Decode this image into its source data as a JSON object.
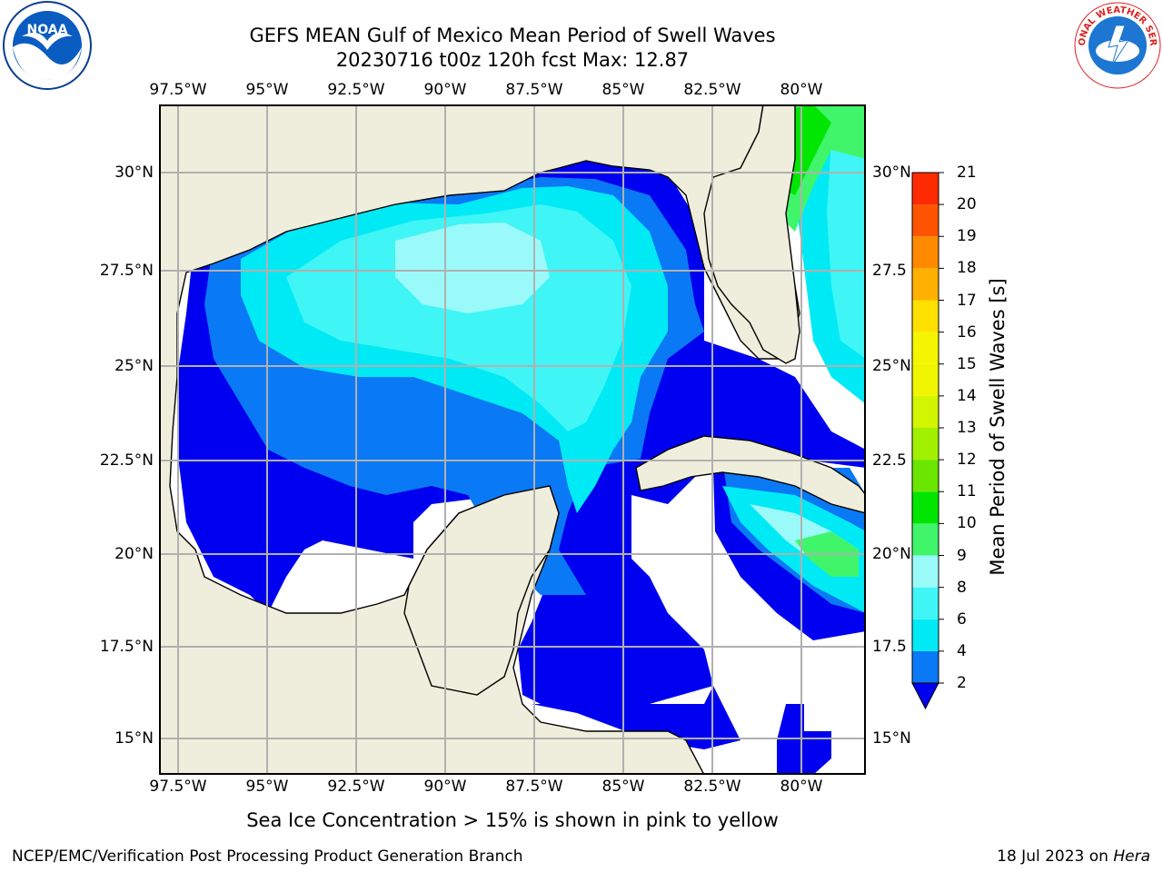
{
  "title_line1": "GEFS MEAN Gulf of Mexico Mean Period of Swell Waves",
  "title_line2": "20230716 t00z 120h fcst   Max: 12.87",
  "lon_ticks": [
    "97.5°W",
    "95°W",
    "92.5°W",
    "90°W",
    "87.5°W",
    "85°W",
    "82.5°W",
    "80°W"
  ],
  "lat_ticks_left": [
    "30°N",
    "27.5°N",
    "25°N",
    "22.5°N",
    "20°N",
    "17.5°N",
    "15°N"
  ],
  "lat_ticks_right": [
    "30°N",
    "27.5",
    "25°N",
    "22.5",
    "20°N",
    "17.5",
    "15°N"
  ],
  "colorbar": {
    "label": "Mean Period of Swell Waves [s]",
    "ticks": [
      "2",
      "4",
      "6",
      "8",
      "9",
      "10",
      "11",
      "12",
      "13",
      "14",
      "15",
      "16",
      "17",
      "18",
      "19",
      "20",
      "21"
    ],
    "colors": [
      "#0a79f5",
      "#00eaf5",
      "#40f5f5",
      "#9afaf9",
      "#40f56a",
      "#00e600",
      "#6ae600",
      "#a0f000",
      "#d2f500",
      "#f0f500",
      "#f5f500",
      "#ffe000",
      "#ffb000",
      "#ff8a00",
      "#ff5500",
      "#ff2a00"
    ],
    "under_color": "#0000f0"
  },
  "ice_note": "Sea Ice Concentration > 15% is shown in pink to yellow",
  "footer_left": "NCEP/EMC/Verification Post Processing Product Generation Branch",
  "footer_date": "18 Jul 2023 on",
  "footer_machine": "Hera",
  "logos": {
    "left": "NOAA",
    "right": "NATIONAL WEATHER SERVICE"
  },
  "map_colors": {
    "land": "#efeedc",
    "grid": "#b0b0b0",
    "coast": "#000000",
    "no_swell": "#ffffff"
  }
}
